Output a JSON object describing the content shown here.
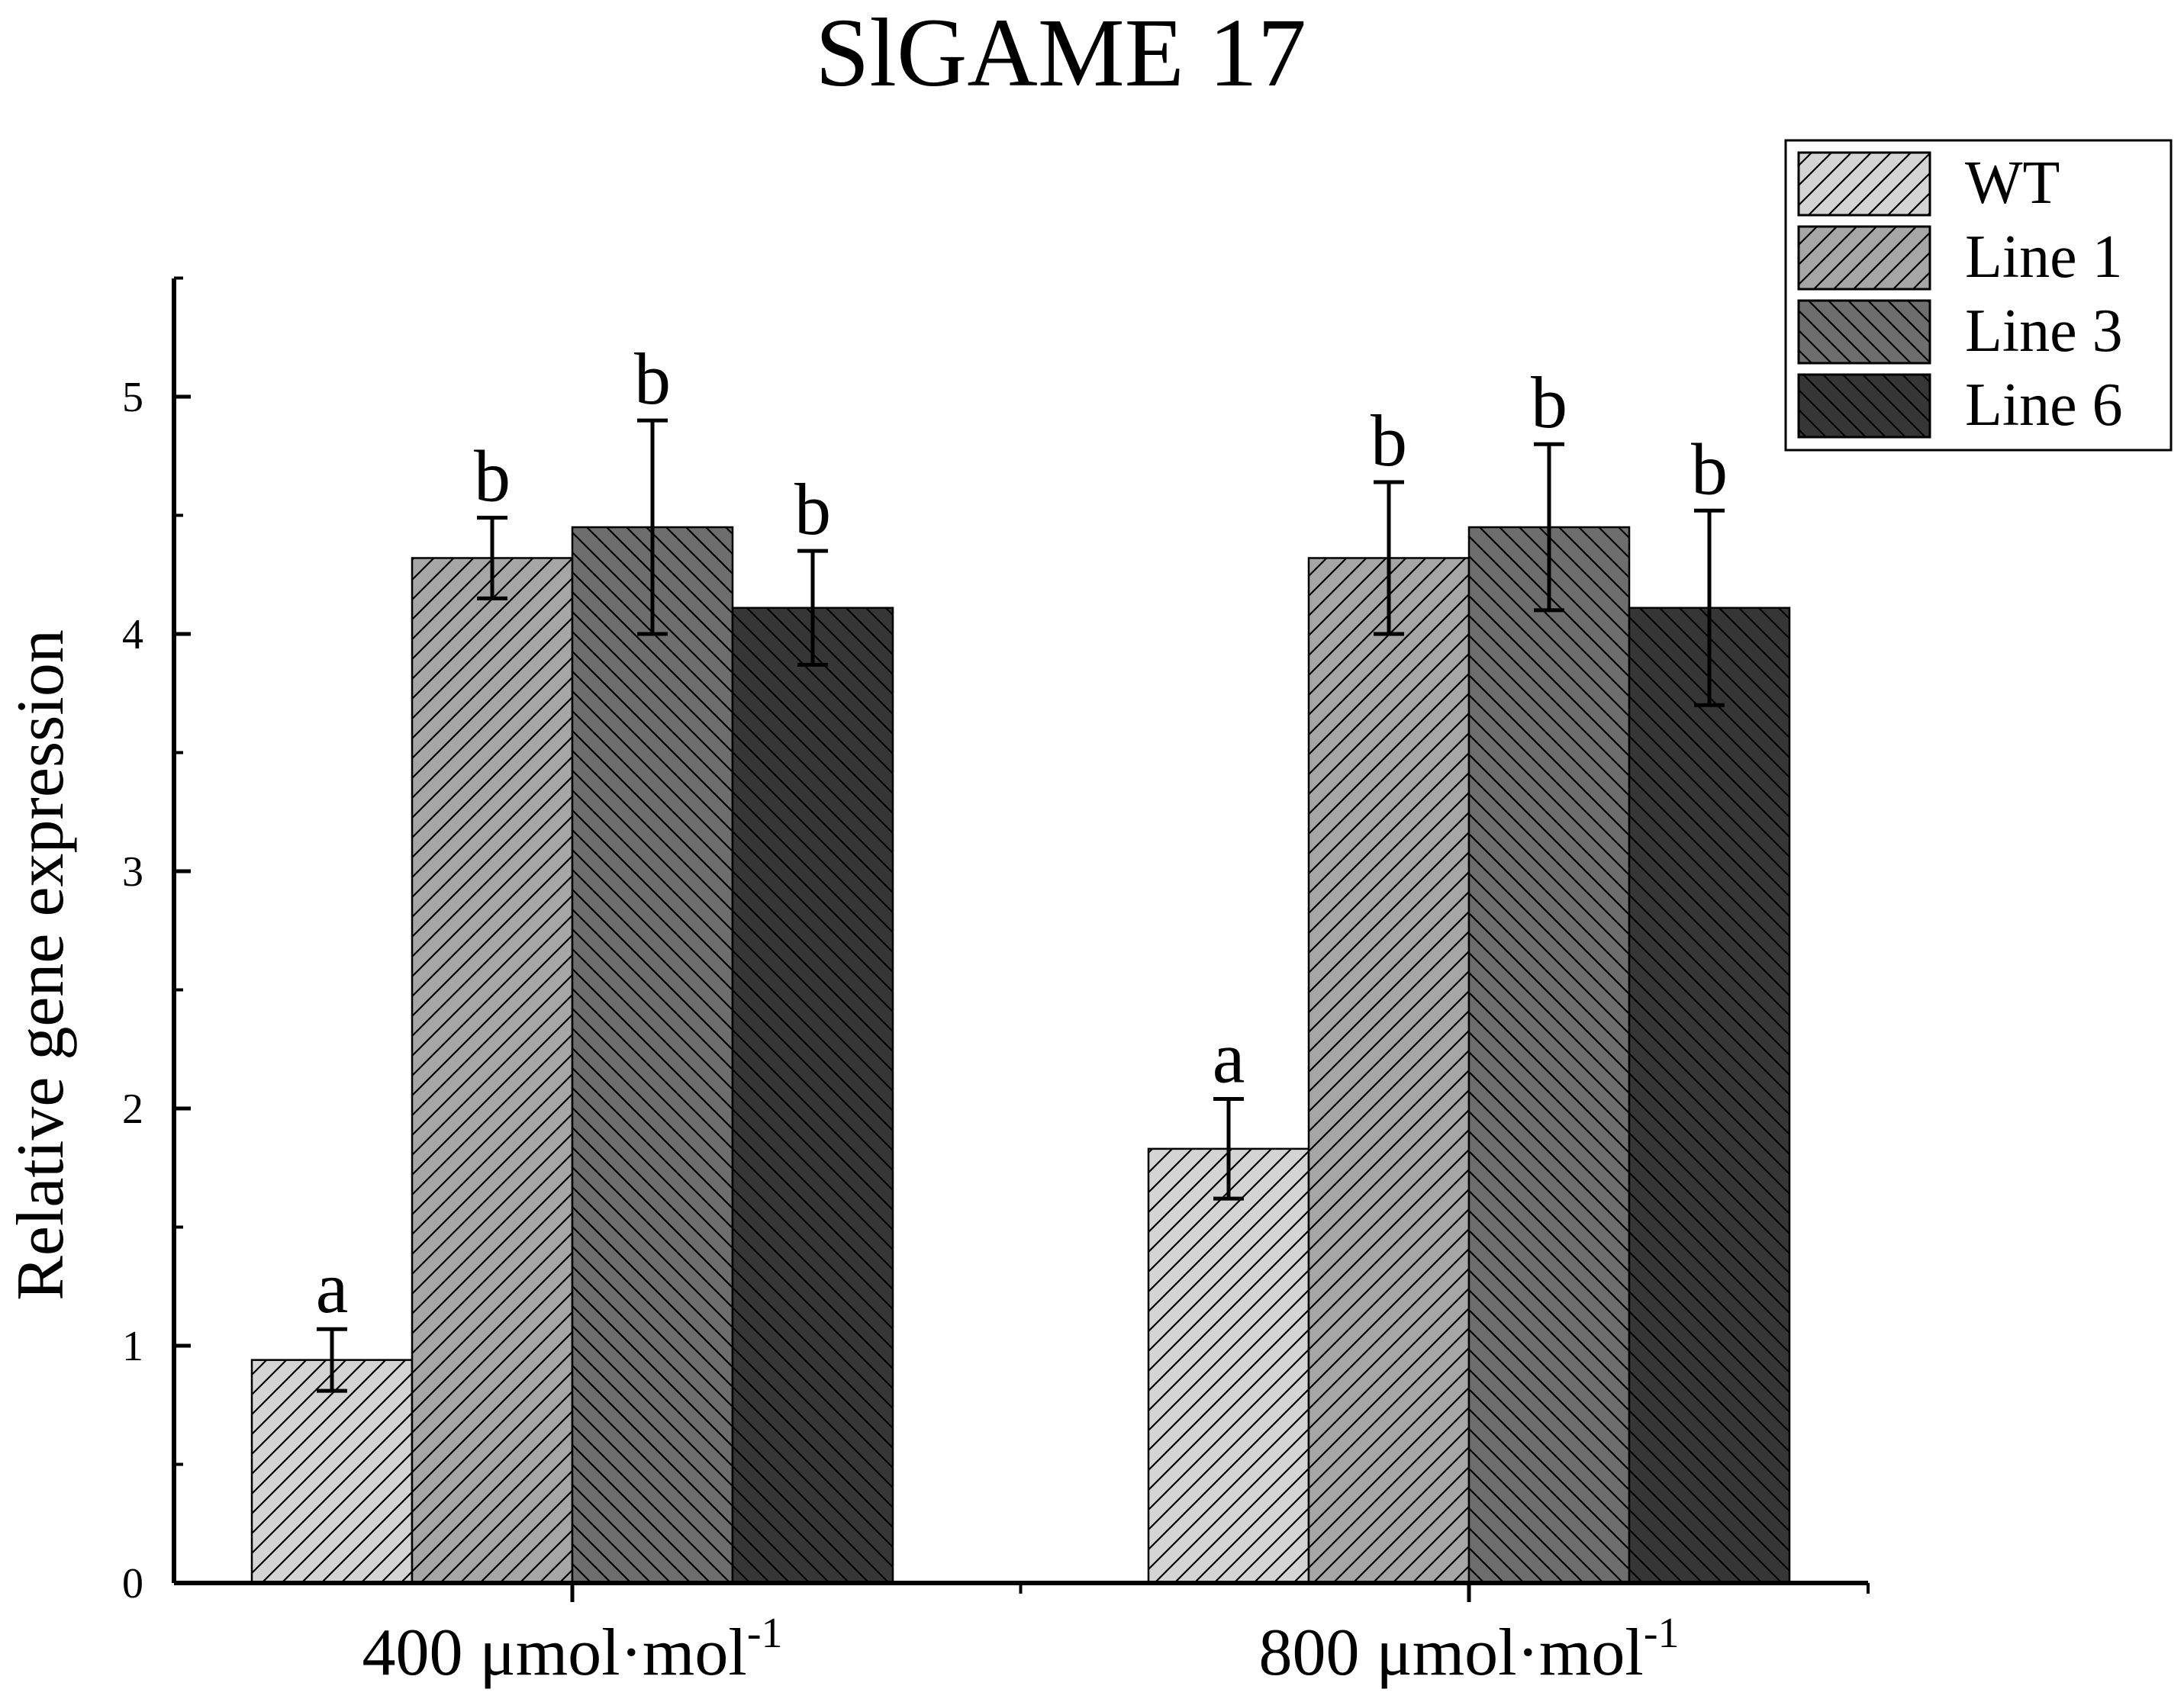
{
  "chart_data": {
    "type": "bar",
    "title": "SlGAME 17",
    "xlabel": "",
    "ylabel": "Relative gene expression",
    "ylim": [
      0,
      5.5
    ],
    "yticks": [
      "0",
      "1",
      "2",
      "3",
      "4",
      "5"
    ],
    "categories": [
      {
        "main": "400 μmol·mol",
        "sup": "-1"
      },
      {
        "main": "800 μmol·mol",
        "sup": "-1"
      }
    ],
    "series": [
      {
        "name": "WT",
        "values": [
          0.94,
          1.83
        ],
        "errors": [
          0.13,
          0.21
        ],
        "letters": [
          "a",
          "a"
        ],
        "fill": "#d4d4d4",
        "hatch": "forward"
      },
      {
        "name": "Line 1",
        "values": [
          4.32,
          4.32
        ],
        "errors": [
          0.17,
          0.32
        ],
        "letters": [
          "b",
          "b"
        ],
        "fill": "#a6a6a6",
        "hatch": "forward"
      },
      {
        "name": "Line 3",
        "values": [
          4.45,
          4.45
        ],
        "errors": [
          0.45,
          0.35
        ],
        "letters": [
          "b",
          "b"
        ],
        "fill": "#6e6e6e",
        "hatch": "backward"
      },
      {
        "name": "Line 6",
        "values": [
          4.11,
          4.11
        ],
        "errors": [
          0.24,
          0.41
        ],
        "letters": [
          "b",
          "b"
        ],
        "fill": "#363636",
        "hatch": "backward"
      }
    ],
    "legend_position": "top-right",
    "grid": false
  }
}
